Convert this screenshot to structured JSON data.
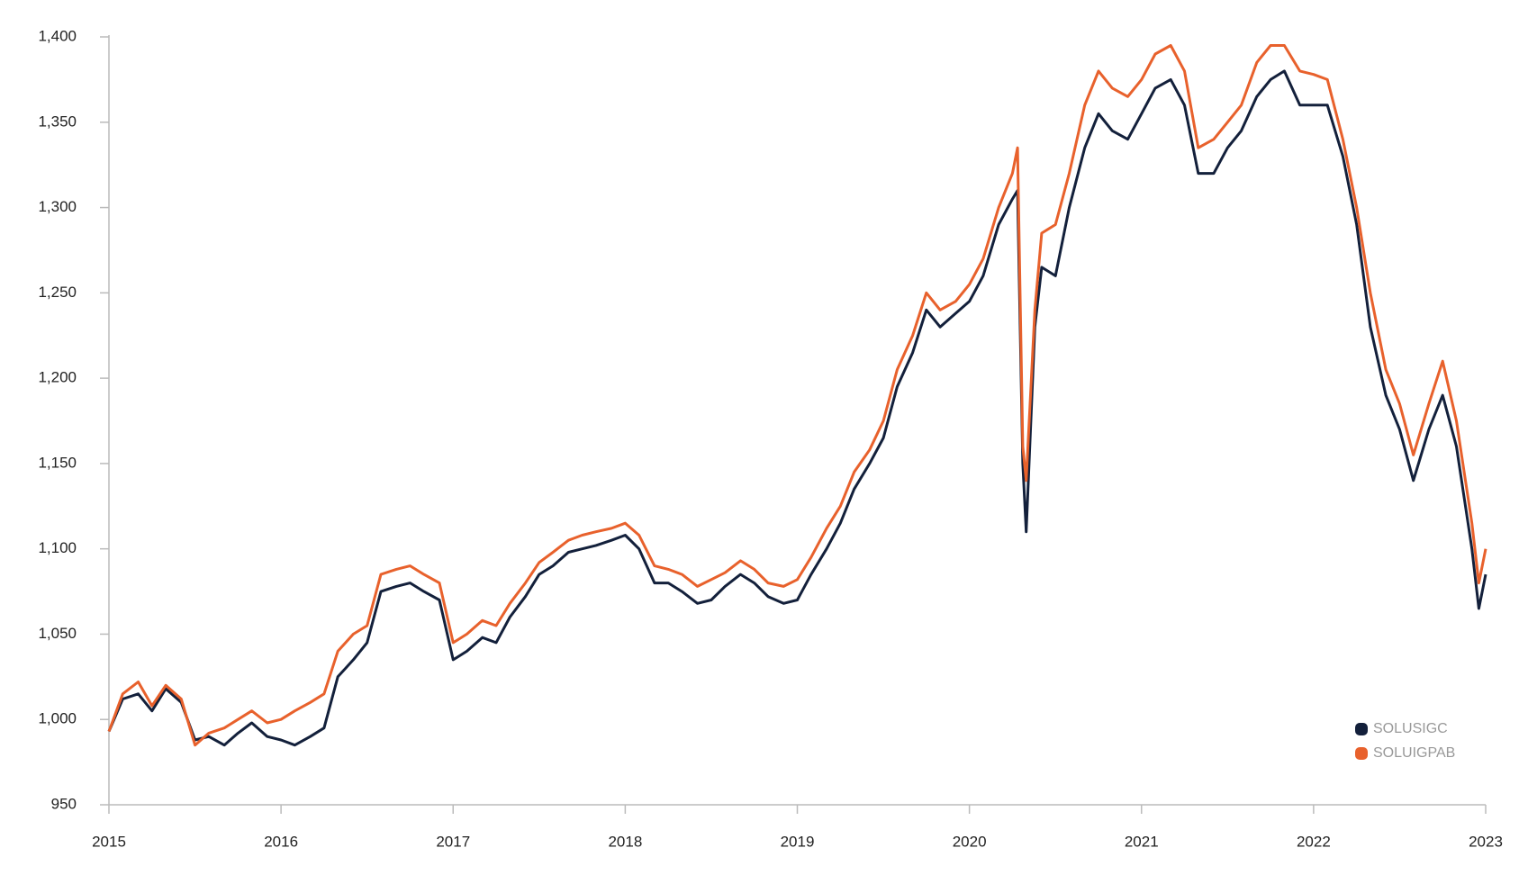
{
  "chart_data": {
    "type": "line",
    "x": [
      2015.0,
      2015.08,
      2015.17,
      2015.25,
      2015.33,
      2015.42,
      2015.5,
      2015.58,
      2015.67,
      2015.75,
      2015.83,
      2015.92,
      2016.0,
      2016.08,
      2016.17,
      2016.25,
      2016.33,
      2016.42,
      2016.5,
      2016.58,
      2016.67,
      2016.75,
      2016.83,
      2016.92,
      2017.0,
      2017.08,
      2017.17,
      2017.25,
      2017.33,
      2017.42,
      2017.5,
      2017.58,
      2017.67,
      2017.75,
      2017.83,
      2017.92,
      2018.0,
      2018.08,
      2018.17,
      2018.25,
      2018.33,
      2018.42,
      2018.5,
      2018.58,
      2018.67,
      2018.75,
      2018.83,
      2018.92,
      2019.0,
      2019.08,
      2019.17,
      2019.25,
      2019.33,
      2019.42,
      2019.5,
      2019.58,
      2019.67,
      2019.75,
      2019.83,
      2019.92,
      2020.0,
      2020.08,
      2020.17,
      2020.25,
      2020.28,
      2020.31,
      2020.33,
      2020.38,
      2020.42,
      2020.5,
      2020.58,
      2020.67,
      2020.75,
      2020.83,
      2020.92,
      2021.0,
      2021.08,
      2021.17,
      2021.25,
      2021.33,
      2021.42,
      2021.5,
      2021.58,
      2021.67,
      2021.75,
      2021.83,
      2021.92,
      2022.0,
      2022.08,
      2022.17,
      2022.25,
      2022.33,
      2022.42,
      2022.5,
      2022.58,
      2022.67,
      2022.75,
      2022.83,
      2022.92,
      2022.96,
      2023.0
    ],
    "series": [
      {
        "name": "SOLUSIGC",
        "color": "#13203b",
        "values": [
          993,
          1012,
          1015,
          1005,
          1018,
          1010,
          988,
          990,
          985,
          992,
          998,
          990,
          988,
          985,
          990,
          995,
          1025,
          1035,
          1045,
          1075,
          1078,
          1080,
          1075,
          1070,
          1035,
          1040,
          1048,
          1045,
          1060,
          1072,
          1085,
          1090,
          1098,
          1100,
          1102,
          1105,
          1108,
          1100,
          1080,
          1080,
          1075,
          1068,
          1070,
          1078,
          1085,
          1080,
          1072,
          1068,
          1070,
          1085,
          1100,
          1115,
          1135,
          1150,
          1165,
          1195,
          1215,
          1240,
          1230,
          1238,
          1245,
          1260,
          1290,
          1305,
          1310,
          1150,
          1110,
          1230,
          1265,
          1260,
          1300,
          1335,
          1355,
          1345,
          1340,
          1355,
          1370,
          1375,
          1360,
          1320,
          1320,
          1335,
          1345,
          1365,
          1375,
          1380,
          1360,
          1360,
          1360,
          1330,
          1290,
          1230,
          1190,
          1170,
          1140,
          1170,
          1190,
          1160,
          1100,
          1065,
          1085
        ]
      },
      {
        "name": "SOLUIGPAB",
        "color": "#e8612c",
        "values": [
          993,
          1015,
          1022,
          1008,
          1020,
          1012,
          985,
          992,
          995,
          1000,
          1005,
          998,
          1000,
          1005,
          1010,
          1015,
          1040,
          1050,
          1055,
          1085,
          1088,
          1090,
          1085,
          1080,
          1045,
          1050,
          1058,
          1055,
          1068,
          1080,
          1092,
          1098,
          1105,
          1108,
          1110,
          1112,
          1115,
          1108,
          1090,
          1088,
          1085,
          1078,
          1082,
          1086,
          1093,
          1088,
          1080,
          1078,
          1082,
          1095,
          1112,
          1125,
          1145,
          1158,
          1175,
          1205,
          1225,
          1250,
          1240,
          1245,
          1255,
          1270,
          1300,
          1320,
          1335,
          1160,
          1140,
          1240,
          1285,
          1290,
          1320,
          1360,
          1380,
          1370,
          1365,
          1375,
          1390,
          1395,
          1380,
          1335,
          1340,
          1350,
          1360,
          1385,
          1395,
          1395,
          1380,
          1378,
          1375,
          1340,
          1300,
          1250,
          1205,
          1185,
          1155,
          1185,
          1210,
          1175,
          1115,
          1080,
          1100
        ]
      }
    ],
    "xlim": [
      2015,
      2023
    ],
    "xticks": [
      2015,
      2016,
      2017,
      2018,
      2019,
      2020,
      2021,
      2022,
      2023
    ],
    "ylim": [
      950,
      1400
    ],
    "yticks": [
      950,
      {
        "value": 1000,
        "label": "1,000"
      },
      {
        "value": 1050,
        "label": "1,050"
      },
      {
        "value": 1100,
        "label": "1,100"
      },
      {
        "value": 1150,
        "label": "1,150"
      },
      {
        "value": 1200,
        "label": "1,200"
      },
      {
        "value": 1250,
        "label": "1,250"
      },
      {
        "value": 1300,
        "label": "1,300"
      },
      {
        "value": 1350,
        "label": "1,350"
      },
      {
        "value": 1400,
        "label": "1,400"
      }
    ],
    "grid": false,
    "legend": "lower-right"
  }
}
